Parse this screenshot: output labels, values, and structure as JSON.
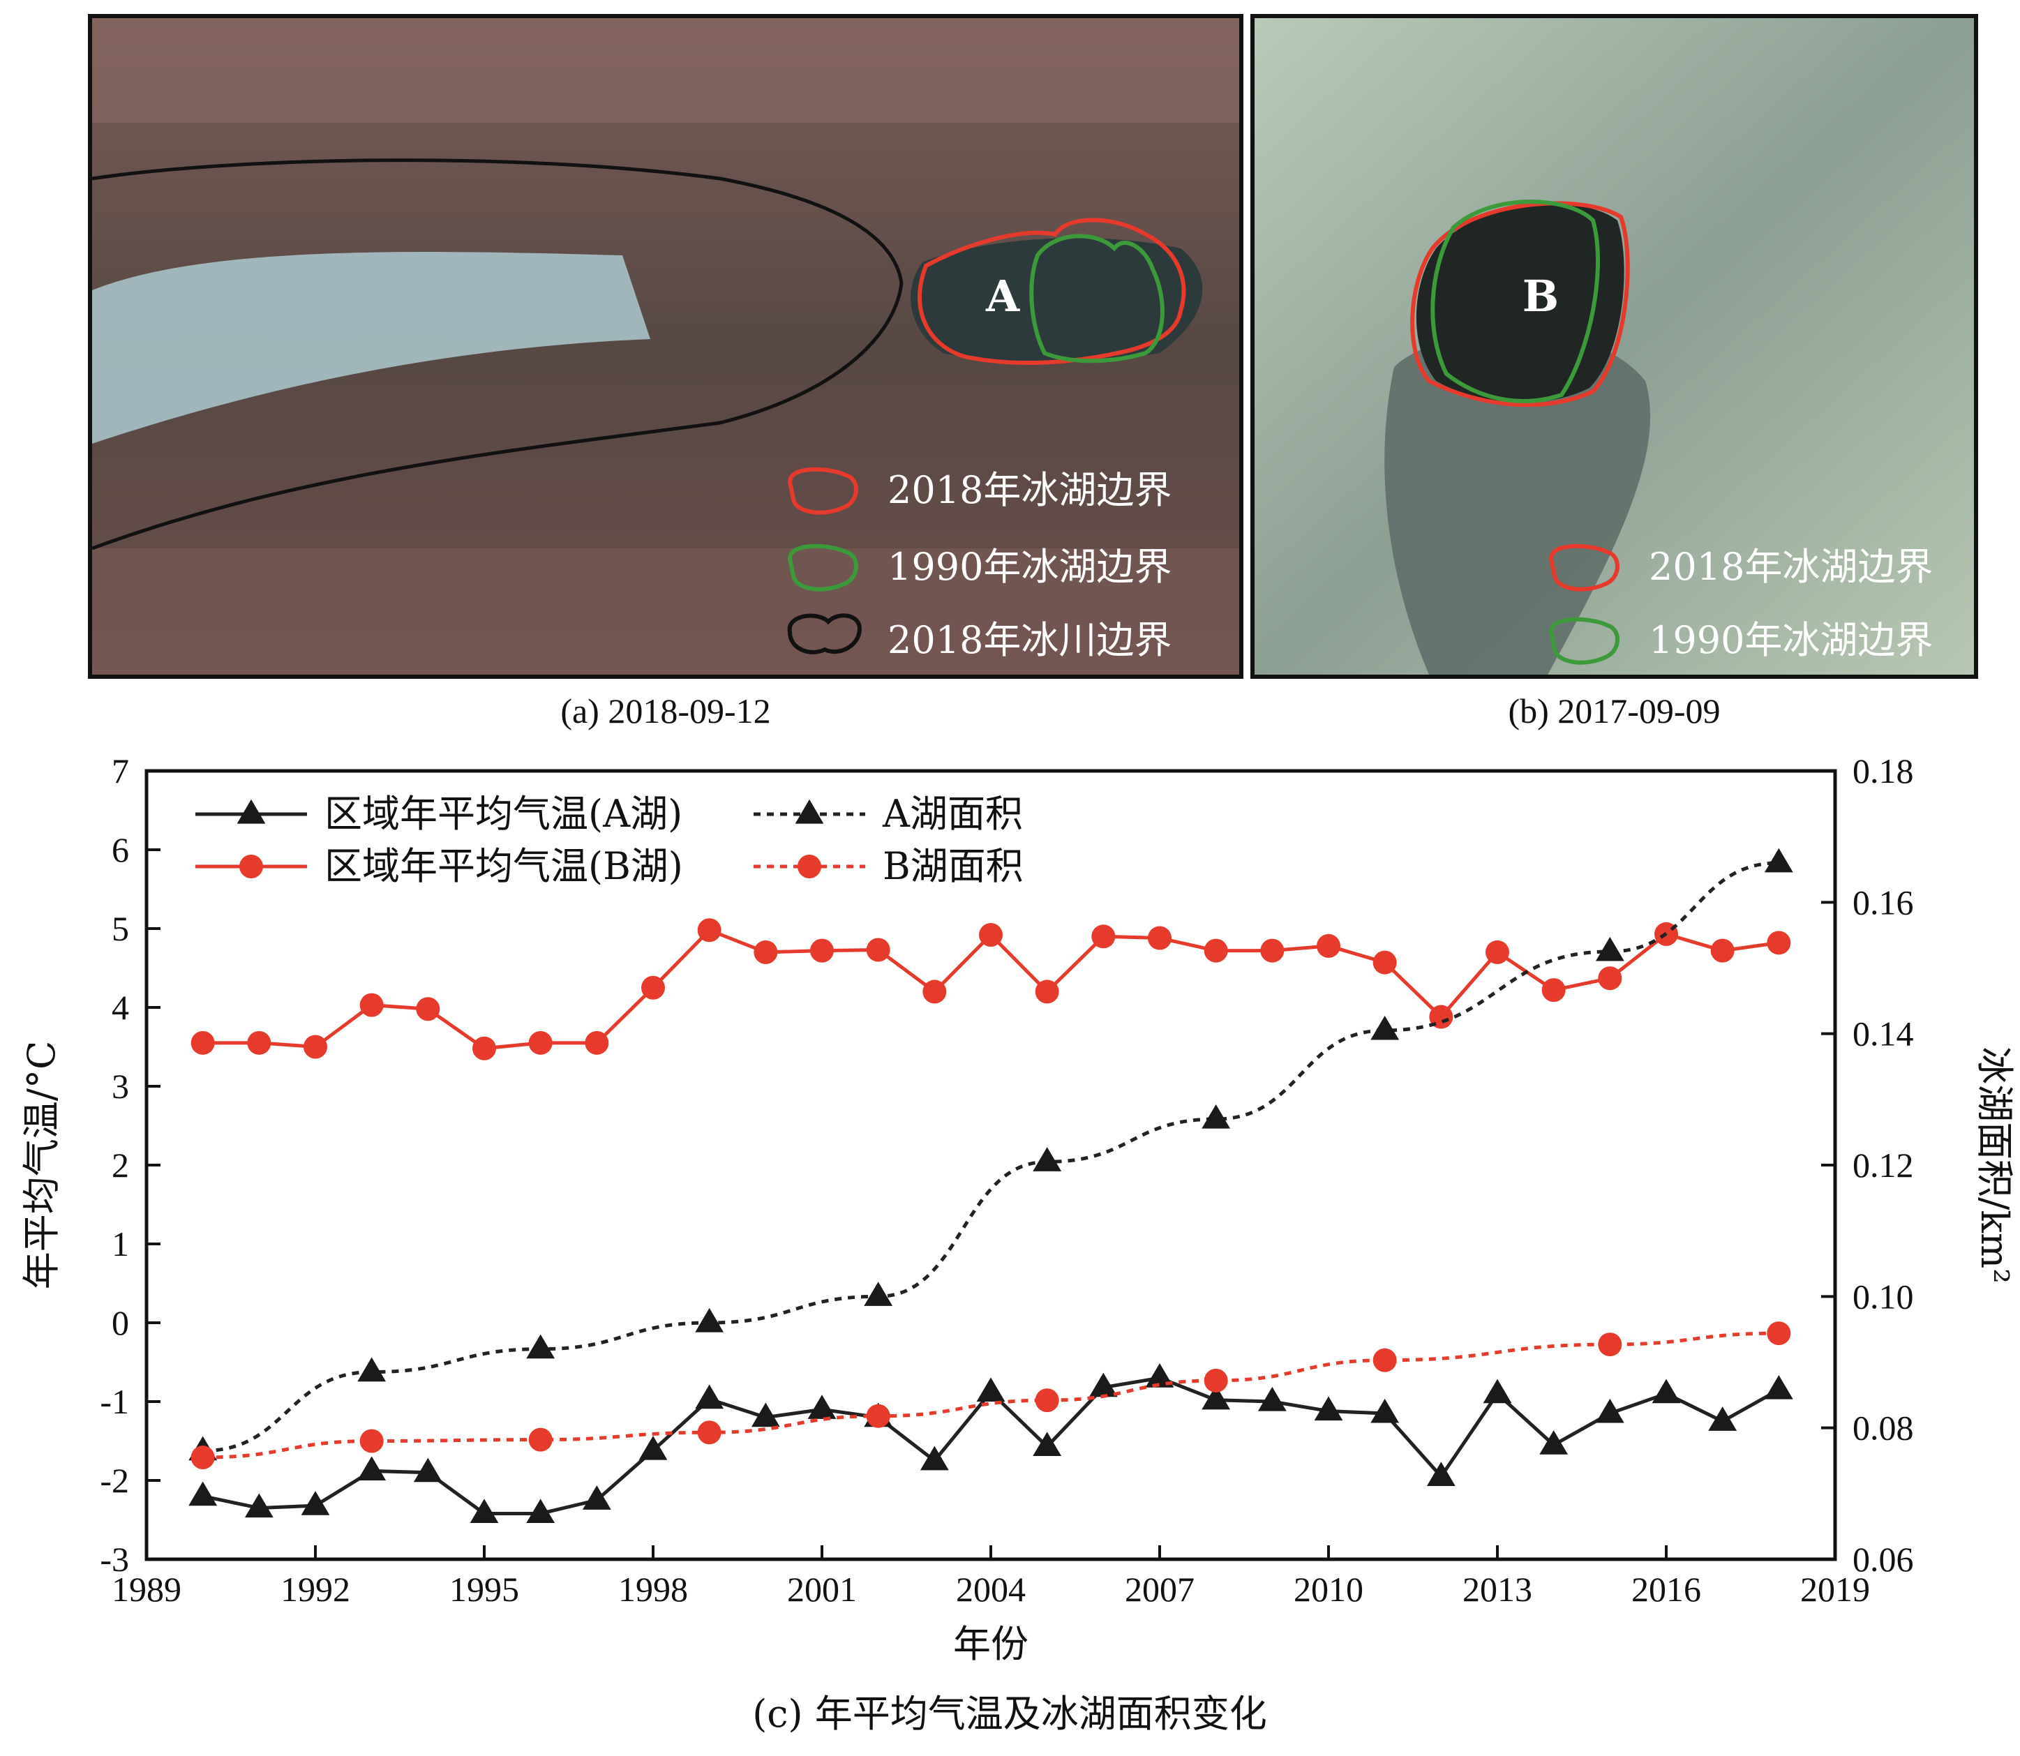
{
  "panel_a": {
    "lake_label": "A",
    "legend": [
      {
        "label": "2018年冰湖边界",
        "color": "#e53a2c"
      },
      {
        "label": "1990年冰湖边界",
        "color": "#3d9a3a"
      },
      {
        "label": "2018年冰川边界",
        "color": "#111111"
      }
    ],
    "caption": "(a) 2018-09-12"
  },
  "panel_b": {
    "lake_label": "B",
    "legend": [
      {
        "label": "2018年冰湖边界",
        "color": "#e53a2c"
      },
      {
        "label": "1990年冰湖边界",
        "color": "#3d9a3a"
      }
    ],
    "caption": "(b) 2017-09-09"
  },
  "chart_data": {
    "type": "line",
    "x": [
      1990,
      1991,
      1992,
      1993,
      1994,
      1995,
      1996,
      1997,
      1998,
      1999,
      2000,
      2001,
      2002,
      2003,
      2004,
      2005,
      2006,
      2007,
      2008,
      2009,
      2010,
      2011,
      2012,
      2013,
      2014,
      2015,
      2016,
      2017,
      2018
    ],
    "xlim": [
      1989,
      2019
    ],
    "xticks": [
      1989,
      1992,
      1995,
      1998,
      2001,
      2004,
      2007,
      2010,
      2013,
      2016,
      2019
    ],
    "xlabel": "年份",
    "ylabel_left": "年平均气温/°C",
    "ylim_left": [
      -3,
      7
    ],
    "yticks_left": [
      "-3",
      "-2",
      "-1",
      "0",
      "1",
      "2",
      "3",
      "4",
      "5",
      "6",
      "7"
    ],
    "ylabel_right": "冰湖面积/km²",
    "ylim_right": [
      0.06,
      0.18
    ],
    "yticks_right": [
      "0.06",
      "0.08",
      "0.10",
      "0.12",
      "0.14",
      "0.16",
      "0.18"
    ],
    "legend_position": "top-left",
    "series": [
      {
        "name": "区域年平均气温(A湖)",
        "axis": "left",
        "style": "solid",
        "marker": "triangle",
        "color": "#222222",
        "x": [
          1990,
          1991,
          1992,
          1993,
          1994,
          1995,
          1996,
          1997,
          1998,
          1999,
          2000,
          2001,
          2002,
          2003,
          2004,
          2005,
          2006,
          2007,
          2008,
          2009,
          2010,
          2011,
          2012,
          2013,
          2014,
          2015,
          2016,
          2017,
          2018
        ],
        "values": [
          -2.2,
          -2.35,
          -2.32,
          -1.88,
          -1.9,
          -2.42,
          -2.42,
          -2.25,
          -1.62,
          -0.97,
          -1.2,
          -1.1,
          -1.2,
          -1.75,
          -0.88,
          -1.57,
          -0.82,
          -0.7,
          -0.98,
          -1.0,
          -1.12,
          -1.15,
          -1.95,
          -0.9,
          -1.55,
          -1.15,
          -0.9,
          -1.25,
          -0.85
        ]
      },
      {
        "name": "区域年平均气温(B湖)",
        "axis": "left",
        "style": "solid",
        "marker": "circle",
        "color": "#e53a2c",
        "x": [
          1990,
          1991,
          1992,
          1993,
          1994,
          1995,
          1996,
          1997,
          1998,
          1999,
          2000,
          2001,
          2002,
          2003,
          2004,
          2005,
          2006,
          2007,
          2008,
          2009,
          2010,
          2011,
          2012,
          2013,
          2014,
          2015,
          2016,
          2017,
          2018
        ],
        "values": [
          3.55,
          3.55,
          3.5,
          4.03,
          3.98,
          3.48,
          3.55,
          3.55,
          4.25,
          4.98,
          4.7,
          4.72,
          4.73,
          4.2,
          4.92,
          4.2,
          4.9,
          4.88,
          4.72,
          4.72,
          4.78,
          4.57,
          3.88,
          4.7,
          4.22,
          4.37,
          4.93,
          4.72,
          4.82
        ]
      },
      {
        "name": "A湖面积",
        "axis": "right",
        "style": "dotted",
        "marker": "triangle",
        "color": "#222222",
        "x": [
          1990,
          1993,
          1996,
          1999,
          2002,
          2005,
          2008,
          2011,
          2015,
          2018
        ],
        "values": [
          0.0765,
          0.0885,
          0.092,
          0.096,
          0.1,
          0.1205,
          0.127,
          0.1405,
          0.1525,
          0.166
        ]
      },
      {
        "name": "B湖面积",
        "axis": "right",
        "style": "dotted",
        "marker": "circle",
        "color": "#e53a2c",
        "x": [
          1990,
          1993,
          1996,
          1999,
          2002,
          2005,
          2008,
          2011,
          2015,
          2018
        ],
        "values": [
          0.0755,
          0.078,
          0.0782,
          0.0793,
          0.0818,
          0.0842,
          0.0872,
          0.0903,
          0.0927,
          0.0944
        ]
      }
    ],
    "caption": "(c) 年平均气温及冰湖面积变化"
  }
}
